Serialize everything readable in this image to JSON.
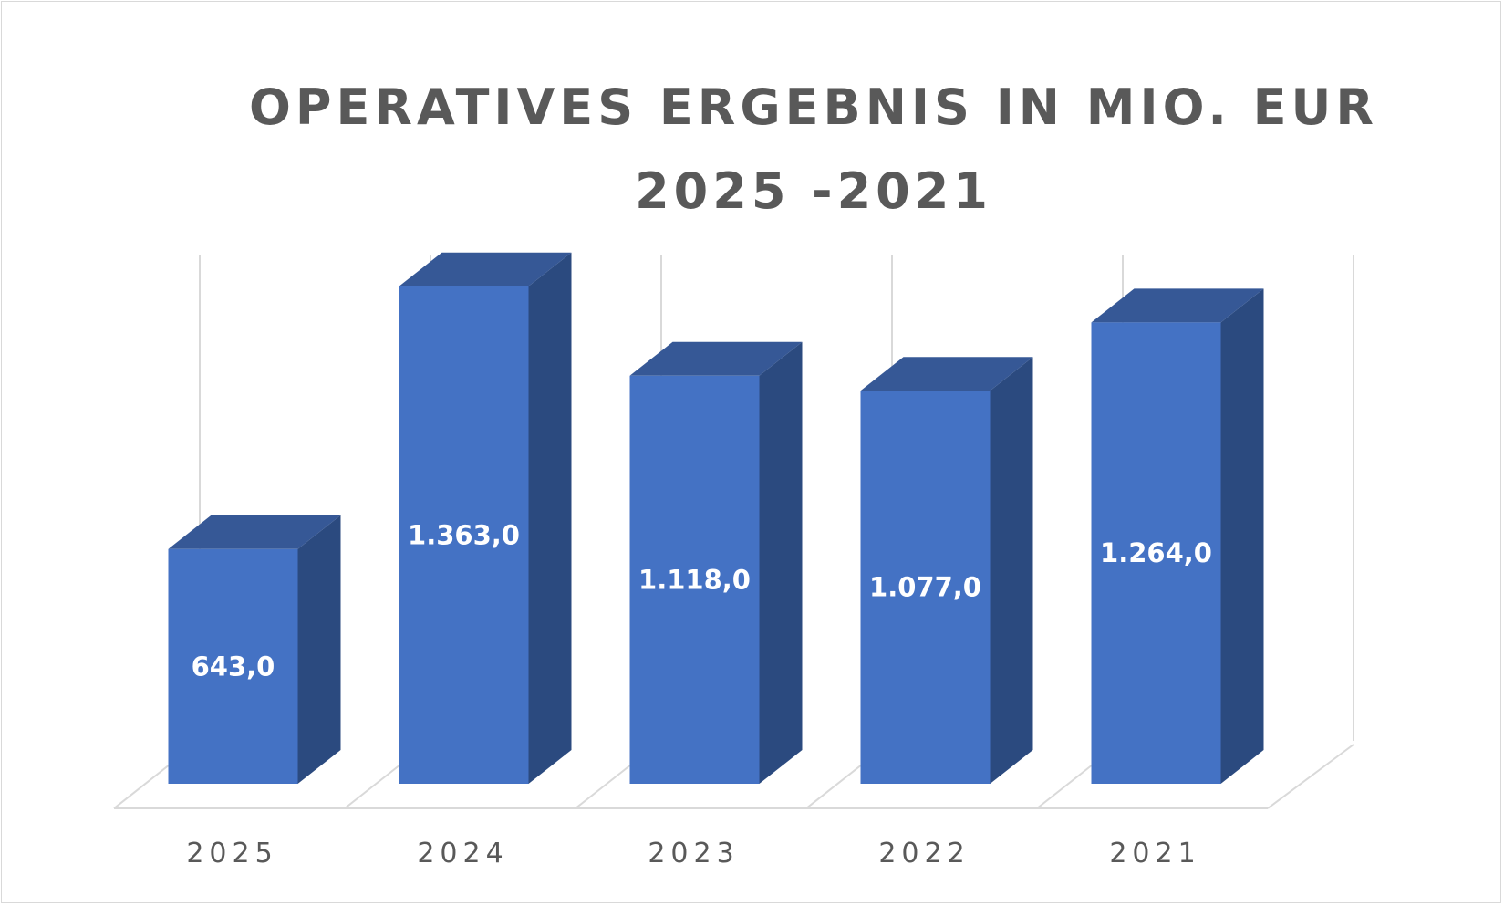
{
  "chart_data": {
    "type": "bar",
    "title_lines": [
      "OPERATIVES ERGEBNIS IN MIO. EUR",
      "2025 -2021"
    ],
    "categories": [
      "2025",
      "2024",
      "2023",
      "2022",
      "2021"
    ],
    "values": [
      643.0,
      1363.0,
      1118.0,
      1077.0,
      1264.0
    ],
    "value_labels": [
      "643,0",
      "1.363,0",
      "1.118,0",
      "1.077,0",
      "1.264,0"
    ],
    "three_d": true,
    "grid": true,
    "colors": {
      "front": "#4472c4",
      "side": "#2b4a7f",
      "top": "#365896",
      "grid": "#d9d9d9",
      "text": "#595959"
    }
  }
}
